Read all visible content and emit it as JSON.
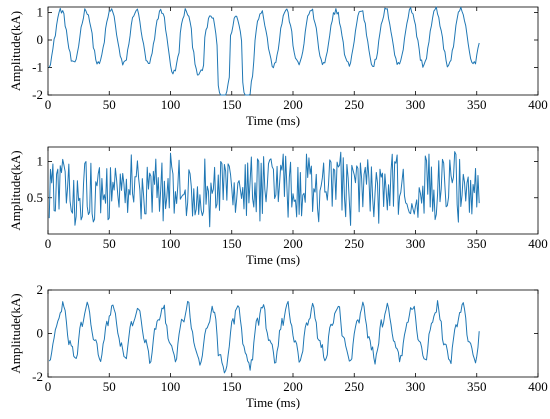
{
  "chart_data": [
    {
      "type": "line",
      "xlabel": "Time (ms)",
      "ylabel": "Amplitude(kA)",
      "xlim": [
        0,
        400
      ],
      "ylim": [
        -2,
        1.2
      ],
      "xticks": [
        0,
        50,
        100,
        150,
        200,
        250,
        300,
        350,
        400
      ],
      "yticks": [
        -2,
        -1,
        0,
        1
      ],
      "grid": false,
      "color": "#1f77b4",
      "generator": {
        "kind": "sine",
        "x_start": 1,
        "x_end": 352,
        "step": 1,
        "period": 20.4,
        "phase": -1.7,
        "base_amp": 1.0,
        "offset": 0.1,
        "noise": 0.12,
        "dips": [
          [
            137,
            1.55,
            12
          ],
          [
            158,
            1.65,
            12
          ],
          [
            105,
            0.35,
            10
          ]
        ]
      },
      "series": [
        {
          "values": []
        }
      ]
    },
    {
      "type": "line",
      "xlabel": "Time (ms)",
      "ylabel": "Amplitude(kA)",
      "xlim": [
        0,
        400
      ],
      "ylim": [
        0,
        1.2
      ],
      "xticks": [
        0,
        50,
        100,
        150,
        200,
        250,
        300,
        350,
        400
      ],
      "yticks": [
        0.5,
        1
      ],
      "ytick_labels": [
        "0.5",
        "1"
      ],
      "grid": false,
      "color": "#1f77b4",
      "generator": {
        "kind": "noise",
        "x_start": 1,
        "x_end": 352,
        "step": 1,
        "mean": 0.62,
        "spread": 0.55,
        "min": 0.05,
        "max": 1.18
      },
      "series": [
        {
          "values": []
        }
      ]
    },
    {
      "type": "line",
      "xlabel": "Time (ms)",
      "ylabel": "Amplitude(kA)",
      "xlim": [
        0,
        400
      ],
      "ylim": [
        -2,
        2
      ],
      "xticks": [
        0,
        50,
        100,
        150,
        200,
        250,
        300,
        350,
        400
      ],
      "yticks": [
        -2,
        0,
        2
      ],
      "grid": false,
      "color": "#1f77b4",
      "generator": {
        "kind": "sine",
        "x_start": 1,
        "x_end": 352,
        "step": 1,
        "period": 20.4,
        "phase": -1.9,
        "base_amp": 1.1,
        "offset": 0.05,
        "noise": 0.22,
        "harmonic": 0.25,
        "dips": [
          [
            137,
            0.75,
            12
          ],
          [
            158,
            0.5,
            12
          ]
        ]
      },
      "series": [
        {
          "values": []
        }
      ]
    }
  ]
}
